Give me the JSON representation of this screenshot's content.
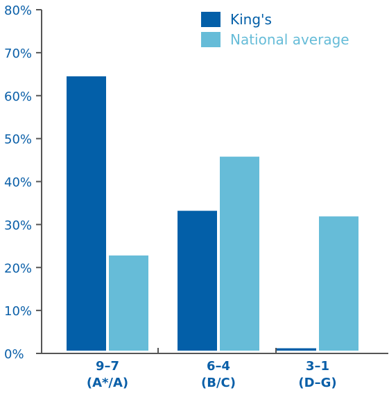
{
  "chart_data": {
    "type": "bar",
    "categories": [
      [
        "9–7",
        "(A*/A)"
      ],
      [
        "6–4",
        "(B/C)"
      ],
      [
        "3–1",
        "(D–G)"
      ]
    ],
    "series": [
      {
        "name": "King's",
        "values": [
          64.5,
          33.2,
          1.2
        ],
        "color": "#035fa8"
      },
      {
        "name": "National average",
        "values": [
          22.8,
          45.8,
          31.9
        ],
        "color": "#66bcd8"
      }
    ],
    "yticks": [
      "0%",
      "10%",
      "20%",
      "30%",
      "40%",
      "50%",
      "60%",
      "70%",
      "80%"
    ],
    "ylim": [
      0,
      80
    ],
    "legend_position": "top-right",
    "axis_color": "#555555",
    "label_color": "#0a5fa8"
  }
}
